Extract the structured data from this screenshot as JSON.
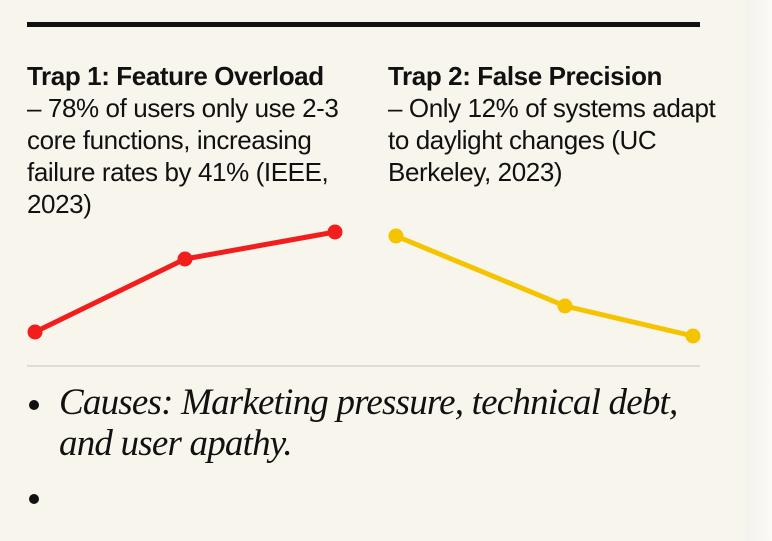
{
  "traps": [
    {
      "title": "Trap 1: Feature Overload",
      "body": "– 78% of users only use 2-3 core functions, increasing failure rates by 41% (IEEE, 2023)",
      "color": "#f21d1d",
      "trend": [
        0,
        73,
        100
      ]
    },
    {
      "title": "Trap 2: False Precision",
      "body": "– Only 12% of systems adapt to daylight changes (UC Berkeley, 2023)",
      "color": "#f5c400",
      "trend": [
        100,
        30,
        0
      ]
    }
  ],
  "bullets": [
    "Causes: Marketing pressure, technical debt, and user apathy.",
    ""
  ]
}
